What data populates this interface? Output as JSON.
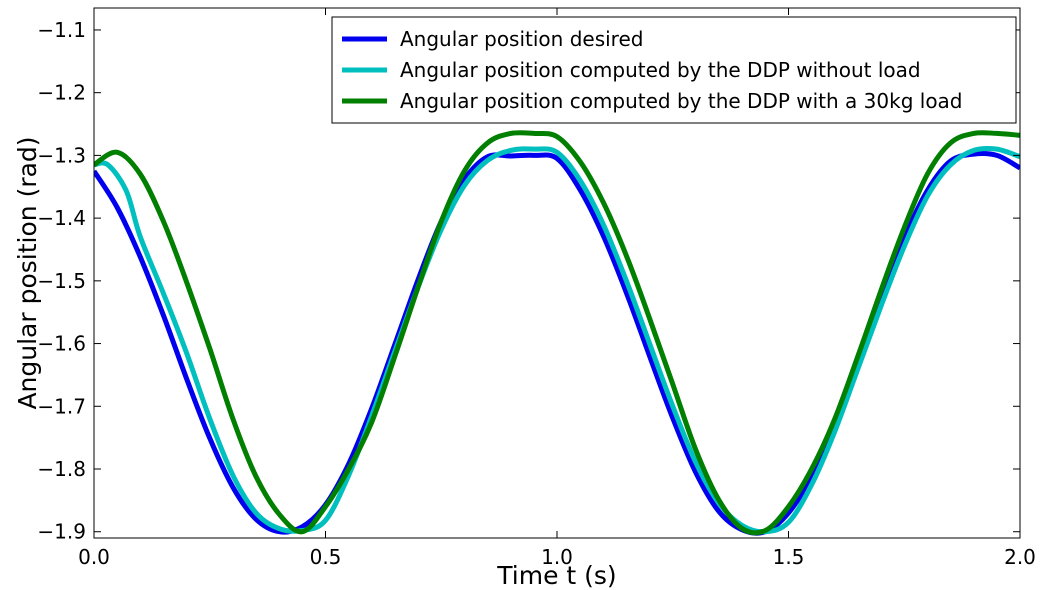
{
  "chart_data": {
    "type": "line",
    "title": "",
    "xlabel": "Time t (s)",
    "ylabel": "Angular position (rad)",
    "xlim": [
      0.0,
      2.0
    ],
    "ylim": [
      -1.91,
      -1.065
    ],
    "xticks": [
      "0.0",
      "0.5",
      "1.0",
      "1.5",
      "2.0"
    ],
    "yticks": [
      "-1.1",
      "-1.2",
      "-1.3",
      "-1.4",
      "-1.5",
      "-1.6",
      "-1.7",
      "-1.8",
      "-1.9"
    ],
    "grid": false,
    "legend_position": "top-right",
    "series": [
      {
        "name": "Angular position desired",
        "color": "#0000ee",
        "x": [
          0.0,
          0.05,
          0.1,
          0.15,
          0.2,
          0.25,
          0.3,
          0.35,
          0.4,
          0.45,
          0.5,
          0.55,
          0.6,
          0.65,
          0.7,
          0.75,
          0.8,
          0.85,
          0.9,
          0.95,
          1.0,
          1.05,
          1.1,
          1.15,
          1.2,
          1.25,
          1.3,
          1.35,
          1.4,
          1.45,
          1.5,
          1.55,
          1.6,
          1.65,
          1.7,
          1.75,
          1.8,
          1.85,
          1.9,
          1.95,
          2.0
        ],
        "values": [
          -1.325,
          -1.383,
          -1.462,
          -1.555,
          -1.656,
          -1.751,
          -1.829,
          -1.88,
          -1.9,
          -1.892,
          -1.857,
          -1.792,
          -1.703,
          -1.601,
          -1.498,
          -1.405,
          -1.338,
          -1.302,
          -1.301,
          -1.3,
          -1.305,
          -1.355,
          -1.428,
          -1.519,
          -1.62,
          -1.719,
          -1.806,
          -1.868,
          -1.897,
          -1.9,
          -1.87,
          -1.812,
          -1.73,
          -1.631,
          -1.528,
          -1.432,
          -1.356,
          -1.309,
          -1.298,
          -1.3,
          -1.32
        ]
      },
      {
        "name": "Angular position computed by the DDP without load",
        "color": "#00bfbf",
        "x": [
          0.0,
          0.03,
          0.07,
          0.1,
          0.15,
          0.2,
          0.25,
          0.3,
          0.35,
          0.4,
          0.45,
          0.5,
          0.55,
          0.6,
          0.65,
          0.7,
          0.75,
          0.8,
          0.85,
          0.9,
          0.95,
          1.0,
          1.05,
          1.1,
          1.15,
          1.2,
          1.25,
          1.3,
          1.35,
          1.4,
          1.45,
          1.5,
          1.55,
          1.6,
          1.65,
          1.7,
          1.75,
          1.8,
          1.85,
          1.9,
          1.95,
          2.0
        ],
        "values": [
          -1.315,
          -1.315,
          -1.357,
          -1.43,
          -1.52,
          -1.615,
          -1.72,
          -1.81,
          -1.87,
          -1.895,
          -1.898,
          -1.882,
          -1.81,
          -1.715,
          -1.612,
          -1.51,
          -1.418,
          -1.348,
          -1.308,
          -1.292,
          -1.29,
          -1.295,
          -1.34,
          -1.41,
          -1.5,
          -1.6,
          -1.7,
          -1.79,
          -1.855,
          -1.89,
          -1.9,
          -1.885,
          -1.825,
          -1.74,
          -1.64,
          -1.54,
          -1.445,
          -1.365,
          -1.315,
          -1.292,
          -1.29,
          -1.302
        ]
      },
      {
        "name": "Angular position computed by the DDP with a 30kg load",
        "color": "#007f00",
        "x": [
          0.0,
          0.05,
          0.1,
          0.15,
          0.2,
          0.25,
          0.3,
          0.35,
          0.4,
          0.45,
          0.5,
          0.55,
          0.6,
          0.65,
          0.7,
          0.75,
          0.8,
          0.85,
          0.9,
          0.95,
          1.0,
          1.05,
          1.1,
          1.15,
          1.2,
          1.25,
          1.3,
          1.35,
          1.4,
          1.45,
          1.5,
          1.55,
          1.6,
          1.65,
          1.7,
          1.75,
          1.8,
          1.85,
          1.9,
          1.95,
          2.0
        ],
        "values": [
          -1.315,
          -1.295,
          -1.33,
          -1.405,
          -1.502,
          -1.608,
          -1.72,
          -1.812,
          -1.872,
          -1.9,
          -1.86,
          -1.8,
          -1.725,
          -1.62,
          -1.51,
          -1.405,
          -1.325,
          -1.28,
          -1.265,
          -1.265,
          -1.27,
          -1.31,
          -1.375,
          -1.46,
          -1.56,
          -1.665,
          -1.77,
          -1.85,
          -1.895,
          -1.898,
          -1.86,
          -1.8,
          -1.72,
          -1.62,
          -1.515,
          -1.415,
          -1.33,
          -1.28,
          -1.265,
          -1.265,
          -1.268
        ]
      }
    ]
  }
}
